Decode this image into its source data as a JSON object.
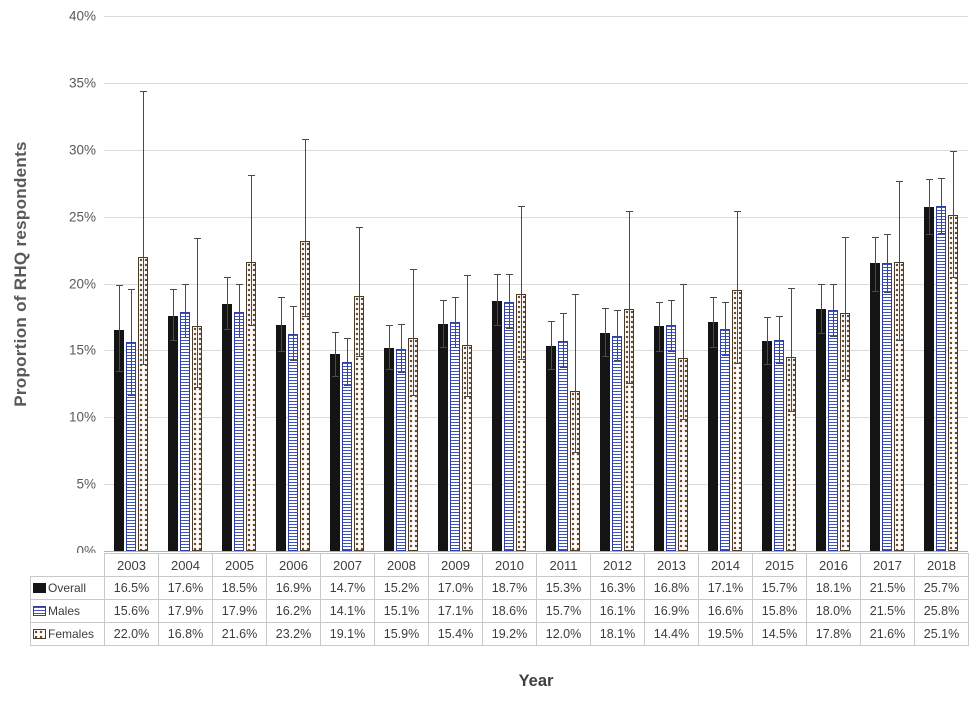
{
  "chart_data": {
    "type": "bar",
    "title": "",
    "ylabel": "Proportion of RHQ respondents",
    "xlabel": "Year",
    "ylim": [
      0,
      40
    ],
    "ytick_step": 5,
    "ytick_format": "percent",
    "grid": true,
    "legend_position": "table-left",
    "categories": [
      "2003",
      "2004",
      "2005",
      "2006",
      "2007",
      "2008",
      "2009",
      "2010",
      "2011",
      "2012",
      "2013",
      "2014",
      "2015",
      "2016",
      "2017",
      "2018"
    ],
    "series": [
      {
        "name": "Overall",
        "style": "solid-black",
        "values": [
          16.5,
          17.6,
          18.5,
          16.9,
          14.7,
          15.2,
          17.0,
          18.7,
          15.3,
          16.3,
          16.8,
          17.1,
          15.7,
          18.1,
          21.5,
          25.7
        ],
        "ci_low": [
          13.4,
          15.7,
          16.5,
          14.9,
          13.0,
          13.5,
          15.2,
          16.8,
          13.5,
          14.5,
          14.9,
          15.2,
          13.9,
          16.2,
          19.4,
          23.6
        ],
        "ci_high": [
          19.9,
          19.6,
          20.5,
          19.0,
          16.4,
          16.9,
          18.8,
          20.7,
          17.2,
          18.2,
          18.6,
          19.0,
          17.5,
          20.0,
          23.5,
          27.8
        ]
      },
      {
        "name": "Males",
        "style": "blue-stripes",
        "values": [
          15.6,
          17.9,
          17.9,
          16.2,
          14.1,
          15.1,
          17.1,
          18.6,
          15.7,
          16.1,
          16.9,
          16.6,
          15.8,
          18.0,
          21.5,
          25.8
        ],
        "ci_low": [
          11.6,
          15.9,
          15.9,
          14.2,
          12.3,
          13.3,
          15.2,
          16.6,
          13.7,
          14.2,
          14.9,
          14.6,
          14.0,
          16.0,
          19.3,
          23.7
        ],
        "ci_high": [
          19.6,
          20.0,
          20.0,
          18.3,
          15.9,
          17.0,
          19.0,
          20.7,
          17.8,
          18.0,
          18.8,
          18.6,
          17.6,
          20.0,
          23.7,
          27.9
        ]
      },
      {
        "name": "Females",
        "style": "brown-dots",
        "values": [
          22.0,
          16.8,
          21.6,
          23.2,
          19.1,
          15.9,
          15.4,
          19.2,
          12.0,
          18.1,
          14.4,
          19.5,
          14.5,
          17.8,
          21.6,
          25.1
        ],
        "ci_low": [
          13.9,
          12.2,
          16.8,
          17.5,
          14.5,
          11.6,
          11.5,
          14.3,
          7.3,
          12.5,
          9.8,
          14.0,
          10.4,
          12.8,
          15.7,
          20.4
        ],
        "ci_high": [
          34.4,
          23.4,
          28.1,
          30.8,
          24.2,
          21.1,
          20.6,
          25.8,
          19.2,
          25.4,
          20.0,
          25.4,
          19.7,
          23.5,
          27.7,
          29.9
        ]
      }
    ],
    "value_suffix": "%"
  }
}
